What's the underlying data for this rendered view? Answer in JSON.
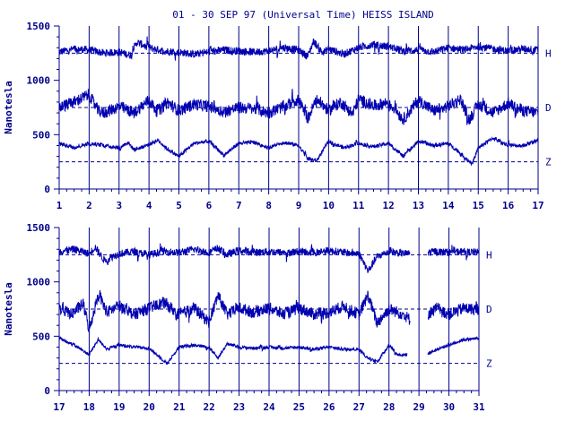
{
  "chart_data": {
    "type": "line",
    "title": "01 - 30 SEP 97 (Universal Time) HEISS ISLAND",
    "ylabel": "Nanotesla",
    "ylim": [
      0,
      1500
    ],
    "yticks": [
      0,
      500,
      1000,
      1500
    ],
    "series_labels": [
      "H",
      "D",
      "Z"
    ],
    "baselines": {
      "H": 1250,
      "D": 750,
      "Z": 250
    },
    "panels": [
      {
        "xticks": [
          1,
          2,
          3,
          4,
          5,
          6,
          7,
          8,
          9,
          10,
          11,
          12,
          13,
          14,
          15,
          16,
          17
        ],
        "xlim": [
          1,
          17
        ],
        "series": [
          {
            "name": "H",
            "keypoints": [
              [
                1,
                1260
              ],
              [
                1.5,
                1290
              ],
              [
                2,
                1280
              ],
              [
                2.5,
                1250
              ],
              [
                3,
                1260
              ],
              [
                3.4,
                1230
              ],
              [
                3.6,
                1350
              ],
              [
                4,
                1300
              ],
              [
                4.5,
                1270
              ],
              [
                5,
                1260
              ],
              [
                5.5,
                1240
              ],
              [
                6,
                1260
              ],
              [
                6.5,
                1280
              ],
              [
                7,
                1270
              ],
              [
                7.5,
                1260
              ],
              [
                8,
                1270
              ],
              [
                8.5,
                1300
              ],
              [
                9,
                1280
              ],
              [
                9.3,
                1220
              ],
              [
                9.5,
                1360
              ],
              [
                9.8,
                1250
              ],
              [
                10,
                1290
              ],
              [
                10.5,
                1240
              ],
              [
                11,
                1300
              ],
              [
                11.5,
                1330
              ],
              [
                12,
                1310
              ],
              [
                12.5,
                1270
              ],
              [
                13,
                1280
              ],
              [
                13.5,
                1260
              ],
              [
                14,
                1300
              ],
              [
                14.5,
                1280
              ],
              [
                15,
                1310
              ],
              [
                15.5,
                1290
              ],
              [
                16,
                1270
              ],
              [
                16.5,
                1290
              ],
              [
                17,
                1280
              ]
            ],
            "noise": 35
          },
          {
            "name": "D",
            "keypoints": [
              [
                1,
                750
              ],
              [
                1.5,
                800
              ],
              [
                2,
                870
              ],
              [
                2.3,
                720
              ],
              [
                2.5,
                700
              ],
              [
                3,
                760
              ],
              [
                3.5,
                700
              ],
              [
                4,
                820
              ],
              [
                4.3,
                700
              ],
              [
                4.6,
                800
              ],
              [
                5,
                720
              ],
              [
                5.5,
                780
              ],
              [
                6,
                760
              ],
              [
                6.5,
                710
              ],
              [
                7,
                750
              ],
              [
                7.5,
                740
              ],
              [
                8,
                700
              ],
              [
                8.5,
                760
              ],
              [
                9,
                820
              ],
              [
                9.3,
                640
              ],
              [
                9.6,
                830
              ],
              [
                10,
                720
              ],
              [
                10.4,
                800
              ],
              [
                10.8,
                690
              ],
              [
                11,
                830
              ],
              [
                11.5,
                760
              ],
              [
                12,
                800
              ],
              [
                12.5,
                640
              ],
              [
                13,
                820
              ],
              [
                13.5,
                720
              ],
              [
                14,
                760
              ],
              [
                14.4,
                830
              ],
              [
                14.7,
                640
              ],
              [
                15,
                780
              ],
              [
                15.5,
                700
              ],
              [
                16,
                790
              ],
              [
                16.5,
                720
              ],
              [
                17,
                700
              ]
            ],
            "noise": 55
          },
          {
            "name": "Z",
            "keypoints": [
              [
                1,
                420
              ],
              [
                1.5,
                380
              ],
              [
                2,
                420
              ],
              [
                2.5,
                400
              ],
              [
                3,
                380
              ],
              [
                3.3,
                430
              ],
              [
                3.5,
                360
              ],
              [
                4,
                410
              ],
              [
                4.3,
                450
              ],
              [
                4.6,
                370
              ],
              [
                5,
                300
              ],
              [
                5.5,
                420
              ],
              [
                6,
                440
              ],
              [
                6.5,
                310
              ],
              [
                7,
                420
              ],
              [
                7.5,
                430
              ],
              [
                8,
                380
              ],
              [
                8.5,
                430
              ],
              [
                9,
                400
              ],
              [
                9.3,
                280
              ],
              [
                9.6,
                260
              ],
              [
                10,
                440
              ],
              [
                10.5,
                380
              ],
              [
                11,
                420
              ],
              [
                11.5,
                390
              ],
              [
                12,
                420
              ],
              [
                12.5,
                300
              ],
              [
                13,
                440
              ],
              [
                13.5,
                400
              ],
              [
                14,
                420
              ],
              [
                14.5,
                310
              ],
              [
                14.8,
                230
              ],
              [
                15,
                380
              ],
              [
                15.5,
                470
              ],
              [
                16,
                400
              ],
              [
                16.5,
                400
              ],
              [
                17,
                450
              ]
            ],
            "noise": 18
          }
        ]
      },
      {
        "xticks": [
          17,
          18,
          19,
          20,
          21,
          22,
          23,
          24,
          25,
          26,
          27,
          28,
          29,
          30,
          31
        ],
        "xlim": [
          17,
          31
        ],
        "series": [
          {
            "name": "H",
            "keypoints": [
              [
                17,
                1280
              ],
              [
                17.5,
                1300
              ],
              [
                18,
                1260
              ],
              [
                18.2,
                1320
              ],
              [
                18.5,
                1200
              ],
              [
                19,
                1260
              ],
              [
                19.5,
                1280
              ],
              [
                20,
                1250
              ],
              [
                20.5,
                1280
              ],
              [
                21,
                1270
              ],
              [
                21.5,
                1300
              ],
              [
                22,
                1270
              ],
              [
                22.3,
                1310
              ],
              [
                22.6,
                1250
              ],
              [
                23,
                1290
              ],
              [
                23.5,
                1270
              ],
              [
                24,
                1280
              ],
              [
                24.5,
                1270
              ],
              [
                25,
                1280
              ],
              [
                25.5,
                1270
              ],
              [
                26,
                1290
              ],
              [
                26.5,
                1270
              ],
              [
                27,
                1260
              ],
              [
                27.3,
                1100
              ],
              [
                27.6,
                1230
              ],
              [
                28,
                1280
              ],
              [
                28.5,
                1260
              ],
              [
                28.7,
                1260
              ]
            ],
            "gap_after": 28.7,
            "resume": [
              [
                29.3,
                1270
              ],
              [
                29.5,
                1280
              ],
              [
                30,
                1270
              ],
              [
                30.5,
                1280
              ],
              [
                31,
                1270
              ]
            ],
            "noise": 35
          },
          {
            "name": "D",
            "keypoints": [
              [
                17,
                760
              ],
              [
                17.4,
                700
              ],
              [
                17.8,
                800
              ],
              [
                18,
                560
              ],
              [
                18.3,
                880
              ],
              [
                18.6,
                720
              ],
              [
                19,
                780
              ],
              [
                19.5,
                700
              ],
              [
                20,
                760
              ],
              [
                20.5,
                810
              ],
              [
                21,
                700
              ],
              [
                21.5,
                760
              ],
              [
                22,
                630
              ],
              [
                22.3,
                880
              ],
              [
                22.6,
                700
              ],
              [
                23,
                760
              ],
              [
                23.5,
                720
              ],
              [
                24,
                760
              ],
              [
                24.5,
                700
              ],
              [
                25,
                760
              ],
              [
                25.5,
                700
              ],
              [
                26,
                720
              ],
              [
                26.5,
                780
              ],
              [
                27,
                700
              ],
              [
                27.3,
                880
              ],
              [
                27.6,
                620
              ],
              [
                28,
                750
              ],
              [
                28.5,
                700
              ],
              [
                28.7,
                650
              ]
            ],
            "gap_after": 28.7,
            "resume": [
              [
                29.3,
                700
              ],
              [
                29.6,
                760
              ],
              [
                30,
                700
              ],
              [
                30.5,
                760
              ],
              [
                31,
                740
              ]
            ],
            "noise": 55
          },
          {
            "name": "Z",
            "keypoints": [
              [
                17,
                480
              ],
              [
                17.5,
                420
              ],
              [
                18,
                330
              ],
              [
                18.3,
                470
              ],
              [
                18.6,
                380
              ],
              [
                19,
                420
              ],
              [
                19.5,
                400
              ],
              [
                20,
                390
              ],
              [
                20.3,
                320
              ],
              [
                20.6,
                250
              ],
              [
                21,
                400
              ],
              [
                21.5,
                420
              ],
              [
                22,
                400
              ],
              [
                22.3,
                300
              ],
              [
                22.6,
                430
              ],
              [
                23,
                400
              ],
              [
                23.5,
                390
              ],
              [
                24,
                400
              ],
              [
                24.5,
                390
              ],
              [
                25,
                400
              ],
              [
                25.5,
                380
              ],
              [
                26,
                400
              ],
              [
                26.5,
                380
              ],
              [
                27,
                380
              ],
              [
                27.3,
                300
              ],
              [
                27.6,
                260
              ],
              [
                28,
                420
              ],
              [
                28.3,
                330
              ],
              [
                28.6,
                330
              ]
            ],
            "gap_after": 28.6,
            "resume": [
              [
                29.3,
                340
              ],
              [
                29.7,
                390
              ],
              [
                30,
                420
              ],
              [
                30.5,
                470
              ],
              [
                31,
                480
              ]
            ],
            "noise": 15
          }
        ]
      }
    ]
  }
}
